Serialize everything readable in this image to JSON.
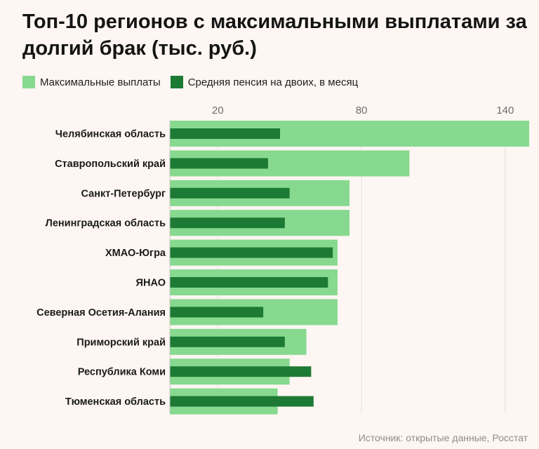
{
  "title": "Топ-10 регионов с максимальными выплатами за долгий брак (тыс. руб.)",
  "source": "Источник: открытые данные, Росстат",
  "colors": {
    "background": "#fdf6f2",
    "max_payments": "#86d98f",
    "avg_pension": "#1d7a34",
    "grid": "#e6dedb",
    "axis": "#cfc8c5"
  },
  "chart_data": {
    "type": "bar",
    "orientation": "horizontal",
    "title": "Топ-10 регионов с максимальными выплатами за долгий брак (тыс. руб.)",
    "categories": [
      "Челябинская область",
      "Ставропольский край",
      "Санкт-Петербург",
      "Ленинградская область",
      "ХМАО-Югра",
      "ЯНАО",
      "Северная Осетия-Алания",
      "Приморский край",
      "Республика Коми",
      "Тюменская область"
    ],
    "series": [
      {
        "name": "Максимальные выплаты",
        "color": "#86d98f",
        "values": [
          150,
          100,
          75,
          75,
          70,
          70,
          70,
          57,
          50,
          45
        ]
      },
      {
        "name": "Средняя пенсия на двоих, в месяц",
        "color": "#1d7a34",
        "values": [
          46,
          41,
          50,
          48,
          68,
          66,
          39,
          48,
          59,
          60
        ]
      }
    ],
    "xticks": [
      20,
      80,
      140
    ],
    "xlim": [
      0,
      150
    ],
    "grid": true,
    "legend": "top-left"
  }
}
